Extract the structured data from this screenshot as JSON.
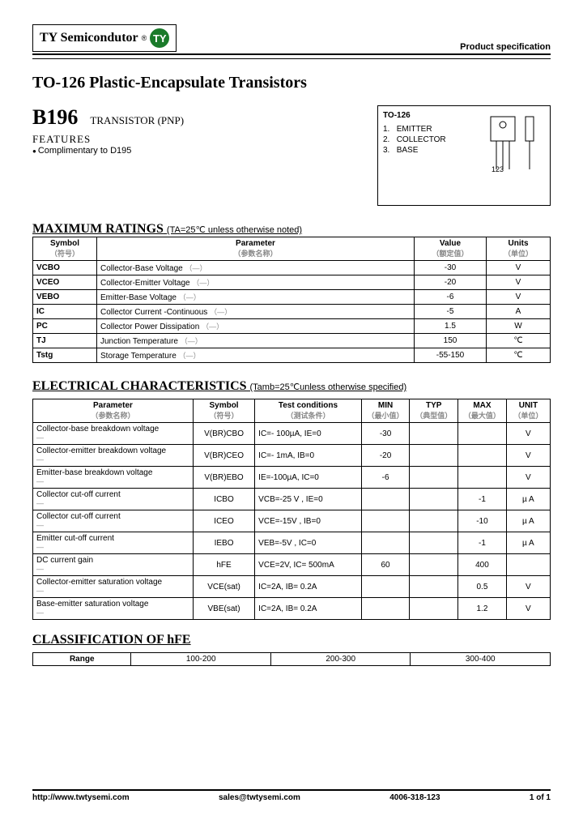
{
  "header": {
    "brand": "TY Semicondutor",
    "reg": "®",
    "logo": "TY",
    "spec": "Product specification"
  },
  "title": "TO-126 Plastic-Encapsulate Transistors",
  "part": {
    "number": "B196",
    "type": "TRANSISTOR (PNP)",
    "feat_h": "FEATURES",
    "feat1": "Complimentary to D195"
  },
  "pkg": {
    "name": "TO-126",
    "pins": [
      {
        "n": "1.",
        "l": "EMITTER"
      },
      {
        "n": "2.",
        "l": "COLLECTOR"
      },
      {
        "n": "3.",
        "l": "BASE"
      }
    ],
    "pinseq": "123"
  },
  "max": {
    "heading": "MAXIMUM RATINGS",
    "cond": "(TA=25℃ unless otherwise noted)",
    "head": {
      "sym": "Symbol",
      "sym_cn": "（符号）",
      "param": "Parameter",
      "param_cn": "（参数名称）",
      "val": "Value",
      "val_cn": "（额定值）",
      "unit": "Units",
      "unit_cn": "（单位）"
    },
    "rows": [
      {
        "s": "VCBO",
        "p": "Collector-Base Voltage",
        "v": "-30",
        "u": "V"
      },
      {
        "s": "VCEO",
        "p": "Collector-Emitter Voltage",
        "v": "-20",
        "u": "V"
      },
      {
        "s": "VEBO",
        "p": "Emitter-Base Voltage",
        "v": "-6",
        "u": "V"
      },
      {
        "s": "IC",
        "p": "Collector Current -Continuous",
        "v": "-5",
        "u": "A"
      },
      {
        "s": "PC",
        "p": "Collector Power Dissipation",
        "v": "1.5",
        "u": "W"
      },
      {
        "s": "TJ",
        "p": "Junction Temperature",
        "v": "150",
        "u": "℃"
      },
      {
        "s": "Tstg",
        "p": "Storage Temperature",
        "v": "-55-150",
        "u": "℃"
      }
    ]
  },
  "elec": {
    "heading": "ELECTRICAL CHARACTERISTICS",
    "cond": "(Tamb=25℃unless otherwise specified)",
    "head": {
      "param": "Parameter",
      "param_cn": "（参数名称）",
      "sym": "Symbol",
      "sym_cn": "（符号）",
      "tc": "Test conditions",
      "tc_cn": "（测试条件）",
      "min": "MIN",
      "min_cn": "（最小值）",
      "typ": "TYP",
      "typ_cn": "（典型值）",
      "max": "MAX",
      "max_cn": "（最大值）",
      "unit": "UNIT",
      "unit_cn": "（单位）"
    },
    "rows": [
      {
        "p": "Collector-base breakdown voltage",
        "s": "V(BR)CBO",
        "tc": "IC=- 100µA, IE=0",
        "min": "-30",
        "typ": "",
        "max": "",
        "u": "V"
      },
      {
        "p": "Collector-emitter breakdown voltage",
        "s": "V(BR)CEO",
        "tc": "IC=- 1mA, IB=0",
        "min": "-20",
        "typ": "",
        "max": "",
        "u": "V"
      },
      {
        "p": "Emitter-base breakdown voltage",
        "s": "V(BR)EBO",
        "tc": "IE=-100µA, IC=0",
        "min": "-6",
        "typ": "",
        "max": "",
        "u": "V"
      },
      {
        "p": "Collector cut-off current",
        "s": "ICBO",
        "tc": "VCB=-25 V , IE=0",
        "min": "",
        "typ": "",
        "max": "-1",
        "u": "µ A"
      },
      {
        "p": "Collector cut-off current",
        "s": "ICEO",
        "tc": "VCE=-15V ,   IB=0",
        "min": "",
        "typ": "",
        "max": "-10",
        "u": "µ A"
      },
      {
        "p": "Emitter cut-off current",
        "s": "IEBO",
        "tc": "VEB=-5V , IC=0",
        "min": "",
        "typ": "",
        "max": "-1",
        "u": "µ A"
      },
      {
        "p": "DC current gain",
        "s": "hFE",
        "tc": "VCE=2V, IC= 500mA",
        "min": "60",
        "typ": "",
        "max": "400",
        "u": ""
      },
      {
        "p": "Collector-emitter saturation voltage",
        "s": "VCE(sat)",
        "tc": "IC=2A, IB= 0.2A",
        "min": "",
        "typ": "",
        "max": "0.5",
        "u": "V"
      },
      {
        "p": "Base-emitter saturation voltage",
        "s": "VBE(sat)",
        "tc": "IC=2A, IB= 0.2A",
        "min": "",
        "typ": "",
        "max": "1.2",
        "u": "V"
      }
    ]
  },
  "hfe": {
    "heading": "CLASSIFICATION OF   hFE",
    "range_label": "Range",
    "ranges": [
      "100-200",
      "200-300",
      "300-400"
    ]
  },
  "footer": {
    "url": "http://www.twtysemi.com",
    "email": "sales@twtysemi.com",
    "phone": "4006-318-123",
    "page": "1 of 1"
  },
  "colors": {
    "accent": "#1a7a2a",
    "text": "#000000",
    "cn": "#888888",
    "bg": "#ffffff"
  }
}
